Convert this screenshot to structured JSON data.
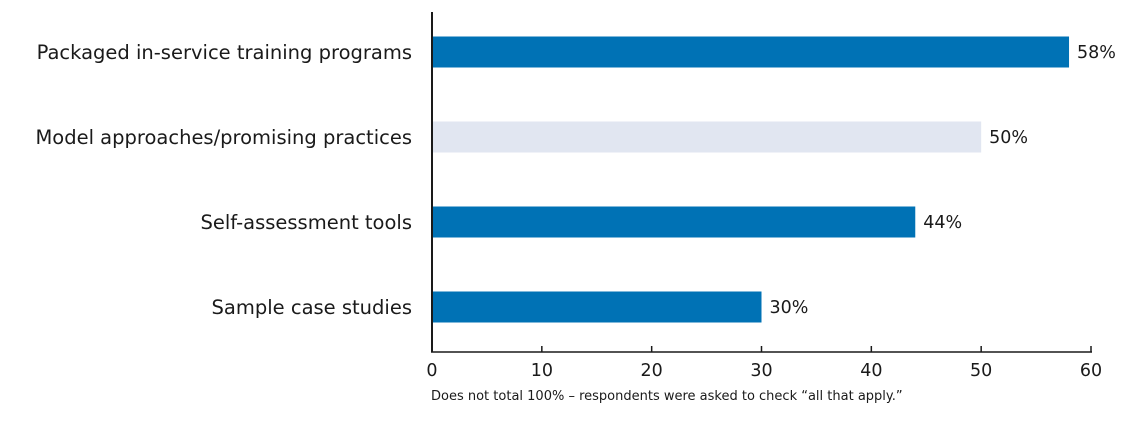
{
  "chart_data": {
    "type": "bar",
    "orientation": "horizontal",
    "categories": [
      "Packaged in-service training programs",
      "Model approaches/promising practices",
      "Self-assessment tools",
      "Sample case studies"
    ],
    "values": [
      58,
      50,
      44,
      30
    ],
    "value_labels": [
      "58%",
      "50%",
      "44%",
      "30%"
    ],
    "bar_colors": [
      "#0072b5",
      "#e1e6f1",
      "#0072b5",
      "#0072b5"
    ],
    "x_ticks": [
      0,
      10,
      20,
      30,
      40,
      50,
      60
    ],
    "xlim": [
      0,
      60
    ],
    "title": "",
    "xlabel": "",
    "ylabel": "",
    "grid": false
  },
  "footnote": "Does not total 100% – respondents were asked to check “all that apply.”",
  "colors": {
    "axis": "#1a1a1a",
    "text": "#1a1a1a"
  }
}
